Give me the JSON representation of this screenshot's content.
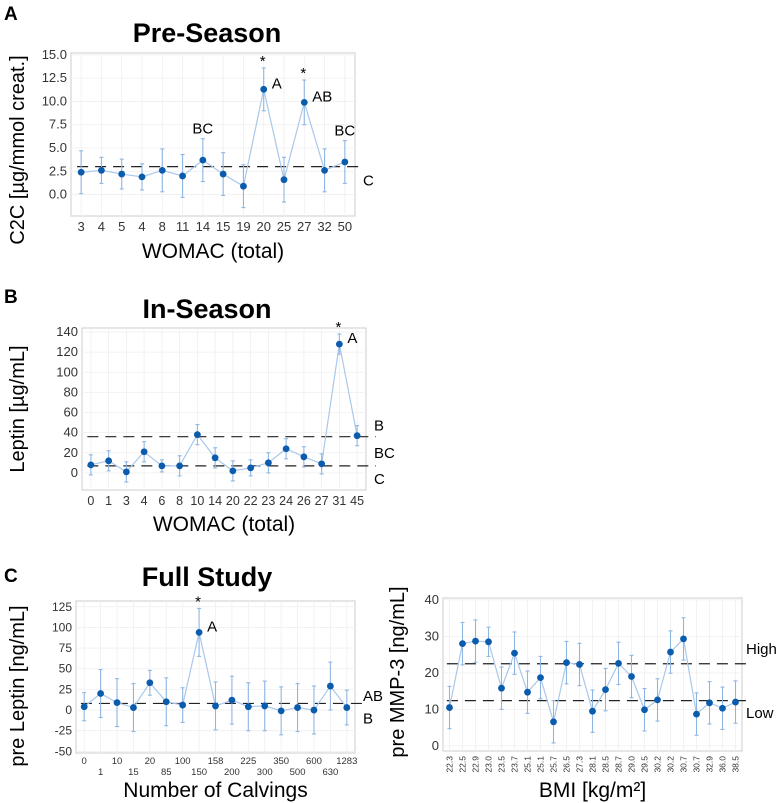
{
  "colors": {
    "point": "#0b5cad",
    "line": "#a9c8ea",
    "error": "#8fb6e3",
    "threshold": "#222222"
  },
  "chart_data": [
    {
      "type": "line",
      "panel_letter": "A",
      "title": "Pre-Season",
      "xlabel": "WOMAC (total)",
      "ylabel": "C2C [µg/mmol creat.]",
      "categories": [
        "3",
        "4",
        "5",
        "4",
        "8",
        "11",
        "14",
        "15",
        "19",
        "20",
        "25",
        "27",
        "32",
        "50"
      ],
      "values": [
        2.4,
        2.6,
        2.2,
        1.9,
        2.6,
        2.0,
        3.7,
        2.2,
        0.9,
        11.3,
        1.6,
        9.9,
        2.6,
        3.5
      ],
      "errors": [
        2.3,
        1.4,
        1.6,
        1.4,
        2.3,
        2.3,
        2.3,
        2.3,
        2.3,
        2.3,
        2.4,
        2.4,
        2.3,
        2.3
      ],
      "yticks": [
        0,
        2.5,
        5,
        7.5,
        10,
        12.5,
        15
      ],
      "ytick_labels": [
        "0.0",
        "2.5",
        "5.0",
        "7.5",
        "10.0",
        "12.5",
        "15.0"
      ],
      "ylim": [
        -2.3,
        15.2
      ],
      "thresholds": [
        3.0
      ],
      "group_labels": [
        {
          "text": "C",
          "y": 1.5
        }
      ],
      "annotations": [
        {
          "index": 6,
          "text": "BC",
          "star": false
        },
        {
          "index": 9,
          "text": "A",
          "star": true
        },
        {
          "index": 11,
          "text": "AB",
          "star": true
        },
        {
          "index": 13,
          "text": "BC",
          "star": false
        }
      ],
      "star": "*",
      "grid": true
    },
    {
      "type": "line",
      "panel_letter": "B",
      "title": "In-Season",
      "xlabel": "WOMAC (total)",
      "ylabel": "Leptin [µg/mL]",
      "categories": [
        "0",
        "1",
        "3",
        "4",
        "6",
        "8",
        "10",
        "14",
        "20",
        "22",
        "23",
        "24",
        "26",
        "27",
        "31",
        "45"
      ],
      "values": [
        8,
        12,
        1,
        21,
        7,
        7,
        38,
        15,
        2,
        5,
        10,
        24,
        16,
        9,
        128,
        37
      ],
      "errors": [
        10,
        10,
        10,
        10,
        6,
        10,
        10,
        10,
        10,
        8,
        10,
        10,
        10,
        10,
        10,
        10
      ],
      "yticks": [
        0,
        20,
        40,
        60,
        80,
        100,
        120,
        140
      ],
      "ytick_labels": [
        "0",
        "20",
        "40",
        "60",
        "80",
        "100",
        "120",
        "140"
      ],
      "ylim": [
        -17,
        144
      ],
      "thresholds": [
        36,
        7
      ],
      "group_labels": [
        {
          "text": "B",
          "y": 47
        },
        {
          "text": "BC",
          "y": 20
        },
        {
          "text": "C",
          "y": -6
        }
      ],
      "annotations": [
        {
          "index": 14,
          "text": "A",
          "star": true
        }
      ],
      "star": "*",
      "grid": true
    },
    {
      "type": "line",
      "panel_letter": "C",
      "title": "Full Study",
      "xlabel": "Number of Calvings",
      "ylabel": "pre Leptin [ng/mL]",
      "categories": [
        "0",
        "1",
        "10",
        "15",
        "20",
        "85",
        "100",
        "150",
        "158",
        "200",
        "225",
        "300",
        "350",
        "500",
        "600",
        "630",
        "1283"
      ],
      "values": [
        4,
        20,
        9,
        3,
        33,
        10,
        6,
        94,
        5,
        12,
        4,
        5,
        -1,
        3,
        0,
        29,
        3
      ],
      "errors": [
        17,
        29,
        29,
        29,
        15,
        29,
        21,
        29,
        29,
        29,
        29,
        30,
        29,
        29,
        29,
        29,
        21
      ],
      "yticks": [
        -50,
        -25,
        0,
        25,
        50,
        75,
        100,
        125
      ],
      "ytick_labels": [
        "-50",
        "-25",
        "0",
        "25",
        "50",
        "75",
        "100",
        "125"
      ],
      "ylim": [
        -52,
        132
      ],
      "thresholds": [
        8
      ],
      "group_labels": [
        {
          "text": "AB",
          "y": 17
        },
        {
          "text": "B",
          "y": -10
        }
      ],
      "annotations": [
        {
          "index": 7,
          "text": "A",
          "star": true
        }
      ],
      "star": "*",
      "grid": true
    },
    {
      "type": "line",
      "panel_letter": "",
      "title": "",
      "xlabel": "BMI [kg/m²]",
      "ylabel": "pre MMP-3 [ng/mL]",
      "categories": [
        "22.3",
        "22.5",
        "22.9",
        "23.0",
        "23.5",
        "23.7",
        "25.1",
        "25.1",
        "25.7",
        "26.5",
        "27.3",
        "28.1",
        "28.5",
        "28.7",
        "29.0",
        "29.5",
        "30.2",
        "30.2",
        "30.7",
        "30.7",
        "32.9",
        "36.0",
        "38.5"
      ],
      "values": [
        10.5,
        28.0,
        28.7,
        28.5,
        15.8,
        25.4,
        14.7,
        18.7,
        6.6,
        22.8,
        22.3,
        9.5,
        15.4,
        22.6,
        19.0,
        9.9,
        12.6,
        25.7,
        29.3,
        8.7,
        11.8,
        10.3,
        12.0
      ],
      "errors": [
        5.8,
        5.8,
        5.8,
        4.0,
        5.8,
        5.8,
        5.8,
        5.8,
        5.8,
        5.8,
        5.8,
        5.8,
        5.8,
        5.8,
        5.8,
        5.8,
        5.8,
        5.8,
        5.8,
        5.8,
        5.8,
        5.8,
        5.8
      ],
      "yticks": [
        0,
        10,
        20,
        30,
        40
      ],
      "ytick_labels": [
        "0",
        "10",
        "20",
        "30",
        "40"
      ],
      "ylim": [
        -1.4,
        40.5
      ],
      "thresholds": [
        22.5,
        12.4
      ],
      "group_labels": [
        {
          "text": "High",
          "y": 26.5
        },
        {
          "text": "Low",
          "y": 9
        },
        {
          "text": "",
          "y": 0
        }
      ],
      "annotations": [],
      "star": "*",
      "grid": true,
      "rotate_xticks": true
    }
  ]
}
